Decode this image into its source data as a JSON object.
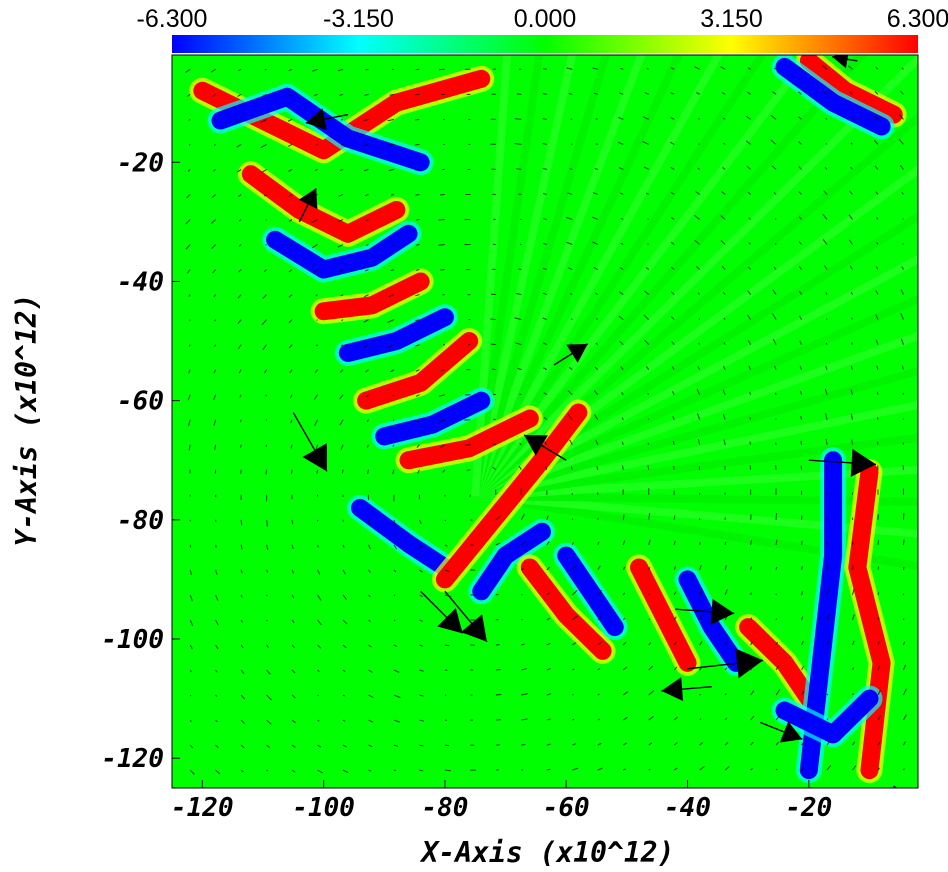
{
  "chart_data": {
    "type": "heatmap",
    "subtype": "vector field overlaid on scalar color map",
    "xlabel": "X-Axis (x10^12)",
    "ylabel": "Y-Axis (x10^12)",
    "xlim": [
      -125,
      -2
    ],
    "ylim": [
      -125,
      -2
    ],
    "x_ticks": [
      -120,
      -100,
      -80,
      -60,
      -40,
      -20
    ],
    "y_ticks": [
      -20,
      -40,
      -60,
      -80,
      -100,
      -120
    ],
    "colorbar": {
      "range": [
        -6.3,
        6.3
      ],
      "tick_values": [
        -6.3,
        -3.15,
        0.0,
        3.15,
        6.3
      ],
      "tick_labels": [
        "-6.300",
        "-3.150",
        "0.000",
        "3.150",
        "6.300"
      ],
      "colors": [
        "#0000ff",
        "#00ffff",
        "#00ff00",
        "#ffff00",
        "#ff0000"
      ]
    },
    "background_value": 0.0,
    "bands": [
      {
        "points": [
          [
            -120,
            -8
          ],
          [
            -110,
            -13
          ],
          [
            -100,
            -18
          ],
          [
            -88,
            -10
          ],
          [
            -74,
            -6
          ]
        ],
        "value": 6.3
      },
      {
        "points": [
          [
            -117,
            -13
          ],
          [
            -106,
            -9
          ],
          [
            -96,
            -16
          ],
          [
            -84,
            -20
          ]
        ],
        "value": -6.3
      },
      {
        "points": [
          [
            -112,
            -22
          ],
          [
            -104,
            -28
          ],
          [
            -96,
            -32
          ],
          [
            -88,
            -28
          ]
        ],
        "value": 6.3
      },
      {
        "points": [
          [
            -108,
            -33
          ],
          [
            -100,
            -38
          ],
          [
            -92,
            -36
          ],
          [
            -86,
            -32
          ]
        ],
        "value": -6.3
      },
      {
        "points": [
          [
            -100,
            -45
          ],
          [
            -92,
            -44
          ],
          [
            -84,
            -40
          ]
        ],
        "value": 6.3
      },
      {
        "points": [
          [
            -96,
            -52
          ],
          [
            -88,
            -50
          ],
          [
            -80,
            -46
          ]
        ],
        "value": -6.3
      },
      {
        "points": [
          [
            -93,
            -60
          ],
          [
            -84,
            -57
          ],
          [
            -76,
            -50
          ]
        ],
        "value": 6.3
      },
      {
        "points": [
          [
            -90,
            -66
          ],
          [
            -82,
            -64
          ],
          [
            -74,
            -60
          ]
        ],
        "value": -6.3
      },
      {
        "points": [
          [
            -86,
            -70
          ],
          [
            -76,
            -68
          ],
          [
            -66,
            -63
          ]
        ],
        "value": 6.3
      },
      {
        "points": [
          [
            -94,
            -78
          ],
          [
            -86,
            -84
          ],
          [
            -80,
            -88
          ]
        ],
        "value": -6.3
      },
      {
        "points": [
          [
            -80,
            -90
          ],
          [
            -72,
            -80
          ],
          [
            -64,
            -70
          ],
          [
            -58,
            -62
          ]
        ],
        "value": 6.3
      },
      {
        "points": [
          [
            -74,
            -92
          ],
          [
            -70,
            -86
          ],
          [
            -64,
            -82
          ]
        ],
        "value": -6.3
      },
      {
        "points": [
          [
            -66,
            -88
          ],
          [
            -60,
            -96
          ],
          [
            -54,
            -102
          ]
        ],
        "value": 6.3
      },
      {
        "points": [
          [
            -60,
            -86
          ],
          [
            -56,
            -92
          ],
          [
            -52,
            -98
          ]
        ],
        "value": -6.3
      },
      {
        "points": [
          [
            -48,
            -88
          ],
          [
            -44,
            -96
          ],
          [
            -40,
            -104
          ]
        ],
        "value": 6.3
      },
      {
        "points": [
          [
            -40,
            -90
          ],
          [
            -36,
            -98
          ],
          [
            -32,
            -104
          ]
        ],
        "value": -6.3
      },
      {
        "points": [
          [
            -30,
            -98
          ],
          [
            -24,
            -104
          ],
          [
            -20,
            -110
          ]
        ],
        "value": 6.3
      },
      {
        "points": [
          [
            -16,
            -70
          ],
          [
            -16,
            -86
          ],
          [
            -18,
            -104
          ],
          [
            -20,
            -122
          ]
        ],
        "value": -6.3
      },
      {
        "points": [
          [
            -10,
            -72
          ],
          [
            -12,
            -88
          ],
          [
            -8,
            -104
          ],
          [
            -10,
            -122
          ]
        ],
        "value": 6.3
      },
      {
        "points": [
          [
            -24,
            -112
          ],
          [
            -16,
            -116
          ],
          [
            -10,
            -110
          ]
        ],
        "value": -6.3
      },
      {
        "points": [
          [
            -20,
            -3
          ],
          [
            -14,
            -8
          ],
          [
            -6,
            -12
          ]
        ],
        "value": 6.3
      },
      {
        "points": [
          [
            -24,
            -4
          ],
          [
            -16,
            -10
          ],
          [
            -8,
            -14
          ]
        ],
        "value": -6.3
      }
    ],
    "large_vectors": [
      {
        "x": -105,
        "y": -62,
        "u": 8,
        "v": -14
      },
      {
        "x": -84,
        "y": -92,
        "u": 10,
        "v": -10
      },
      {
        "x": -80,
        "y": -92,
        "u": 10,
        "v": -12
      },
      {
        "x": -104,
        "y": -30,
        "u": 4,
        "v": 8
      },
      {
        "x": -96,
        "y": -12,
        "u": -10,
        "v": -2
      },
      {
        "x": -42,
        "y": -95,
        "u": 14,
        "v": -1
      },
      {
        "x": -40,
        "y": -105,
        "u": 18,
        "v": 2
      },
      {
        "x": -36,
        "y": -108,
        "u": -12,
        "v": -1
      },
      {
        "x": -28,
        "y": -114,
        "u": 10,
        "v": -4
      },
      {
        "x": -10,
        "y": -126,
        "u": 10,
        "v": -1
      },
      {
        "x": -20,
        "y": -70,
        "u": 16,
        "v": -1
      },
      {
        "x": -60,
        "y": -70,
        "u": -10,
        "v": 6
      },
      {
        "x": -62,
        "y": -54,
        "u": 8,
        "v": 5
      },
      {
        "x": -12,
        "y": -3,
        "u": -6,
        "v": 1
      }
    ]
  }
}
